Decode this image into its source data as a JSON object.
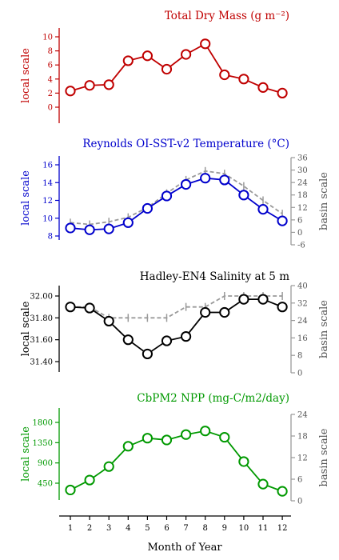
{
  "chart_data": [
    {
      "type": "line",
      "title": "Total Dry Mass (g m⁻²)",
      "color": "#c00000",
      "ylabel_left": "local scale",
      "ylabel_right": "",
      "left_ticks": [
        "0",
        "2",
        "4",
        "6",
        "8",
        "10"
      ],
      "left_ylim": [
        0,
        10
      ],
      "right_ticks": [],
      "x": [
        1,
        2,
        3,
        4,
        5,
        6,
        7,
        8,
        9,
        10,
        11,
        12
      ],
      "series": [
        {
          "axis": "local",
          "style": "solid-circles",
          "values": [
            2.3,
            3.1,
            3.2,
            6.6,
            7.3,
            5.4,
            7.5,
            9.0,
            4.6,
            4.0,
            2.8,
            2.0
          ]
        }
      ]
    },
    {
      "type": "line",
      "title": "Reynolds OI-SST-v2 Temperature (°C)",
      "color": "#0000cc",
      "ylabel_left": "local scale",
      "ylabel_right": "basin scale",
      "left_ticks": [
        "8",
        "10",
        "12",
        "14",
        "16"
      ],
      "left_ylim": [
        8,
        16
      ],
      "right_ticks": [
        "-6",
        "0",
        "6",
        "12",
        "18",
        "24",
        "30",
        "36"
      ],
      "right_ylim": [
        -6,
        36
      ],
      "x": [
        1,
        2,
        3,
        4,
        5,
        6,
        7,
        8,
        9,
        10,
        11,
        12
      ],
      "series": [
        {
          "axis": "local",
          "style": "solid-circles",
          "values": [
            8.9,
            8.7,
            8.8,
            9.5,
            11.1,
            12.5,
            13.8,
            14.5,
            14.3,
            12.6,
            11.0,
            9.7
          ]
        },
        {
          "axis": "basin",
          "style": "dashed-errorbars",
          "values": [
            9.5,
            9.3,
            9.6,
            10.1,
            11.2,
            12.8,
            14.3,
            15.3,
            15.0,
            13.6,
            12.0,
            10.5
          ]
        }
      ]
    },
    {
      "type": "line",
      "title": "Hadley-EN4 Salinity at 5 m",
      "color": "#000000",
      "ylabel_left": "local scale",
      "ylabel_right": "basin scale",
      "left_ticks": [
        "31.40",
        "31.60",
        "31.80",
        "32.00"
      ],
      "left_ylim": [
        31.4,
        32.0
      ],
      "right_ticks": [
        "0",
        "8",
        "16",
        "24",
        "32",
        "40"
      ],
      "right_ylim": [
        0,
        40
      ],
      "x": [
        1,
        2,
        3,
        4,
        5,
        6,
        7,
        8,
        9,
        10,
        11,
        12
      ],
      "series": [
        {
          "axis": "local",
          "style": "solid-circles",
          "values": [
            31.9,
            31.89,
            31.77,
            31.6,
            31.47,
            31.59,
            31.63,
            31.85,
            31.85,
            31.97,
            31.97,
            31.9
          ]
        },
        {
          "axis": "basin",
          "style": "dashed-errorbars",
          "values": [
            31.9,
            31.9,
            31.8,
            31.8,
            31.8,
            31.8,
            31.9,
            31.9,
            32.0,
            32.0,
            32.0,
            32.0
          ]
        }
      ]
    },
    {
      "type": "line",
      "title": "CbPM2 NPP (mg-C/m2/day)",
      "color": "#009900",
      "ylabel_left": "local scale",
      "ylabel_right": "basin scale",
      "left_ticks": [
        "450",
        "900",
        "1350",
        "1800"
      ],
      "left_ylim": [
        450,
        1800
      ],
      "right_ticks": [
        "0",
        "6",
        "12",
        "18",
        "24"
      ],
      "right_ylim": [
        0,
        24
      ],
      "x": [
        1,
        2,
        3,
        4,
        5,
        6,
        7,
        8,
        9,
        10,
        11,
        12
      ],
      "series": [
        {
          "axis": "local",
          "style": "solid-circles",
          "values": [
            300,
            520,
            820,
            1270,
            1450,
            1410,
            1530,
            1610,
            1470,
            930,
            430,
            270
          ]
        }
      ]
    }
  ],
  "xaxis": {
    "label": "Month of Year",
    "ticks": [
      "1",
      "2",
      "3",
      "4",
      "5",
      "6",
      "7",
      "8",
      "9",
      "10",
      "11",
      "12"
    ]
  }
}
